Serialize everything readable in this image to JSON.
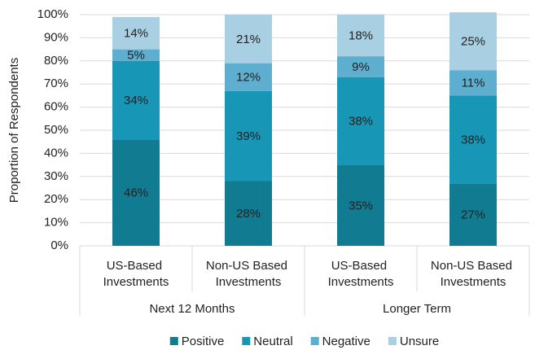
{
  "chart_data": {
    "type": "stacked_bar",
    "y_label": "Proportion of Respondents",
    "categories": [
      "US-Based Investments",
      "Non-US Based Investments",
      "US-Based Investments",
      "Non-US Based Investments"
    ],
    "groups": [
      "Next 12 Months",
      "Longer Term"
    ],
    "series": [
      {
        "name": "Positive",
        "color": "#117b91",
        "values": [
          46,
          28,
          35,
          27
        ],
        "value_labels": [
          "46%",
          "28%",
          "35%",
          "27%"
        ]
      },
      {
        "name": "Neutral",
        "color": "#1796b6",
        "values": [
          34,
          39,
          38,
          38
        ],
        "value_labels": [
          "34%",
          "39%",
          "38%",
          "38%"
        ]
      },
      {
        "name": "Negative",
        "color": "#5eaed0",
        "values": [
          5,
          12,
          9,
          11
        ],
        "value_labels": [
          "5%",
          "12%",
          "9%",
          "11%"
        ]
      },
      {
        "name": "Unsure",
        "color": "#a9cfe2",
        "values": [
          14,
          21,
          18,
          25
        ],
        "value_labels": [
          "14%",
          "21%",
          "18%",
          "25%"
        ]
      }
    ],
    "ylim": [
      0,
      100
    ],
    "yticks": [
      {
        "value": 0,
        "label": "0%"
      },
      {
        "value": 10,
        "label": "10%"
      },
      {
        "value": 20,
        "label": "20%"
      },
      {
        "value": 30,
        "label": "30%"
      },
      {
        "value": 40,
        "label": "40%"
      },
      {
        "value": 50,
        "label": "50%"
      },
      {
        "value": 60,
        "label": "60%"
      },
      {
        "value": 70,
        "label": "70%"
      },
      {
        "value": 80,
        "label": "80%"
      },
      {
        "value": 90,
        "label": "90%"
      },
      {
        "value": 100,
        "label": "100%"
      }
    ],
    "grid": true,
    "legend": "bottom"
  }
}
